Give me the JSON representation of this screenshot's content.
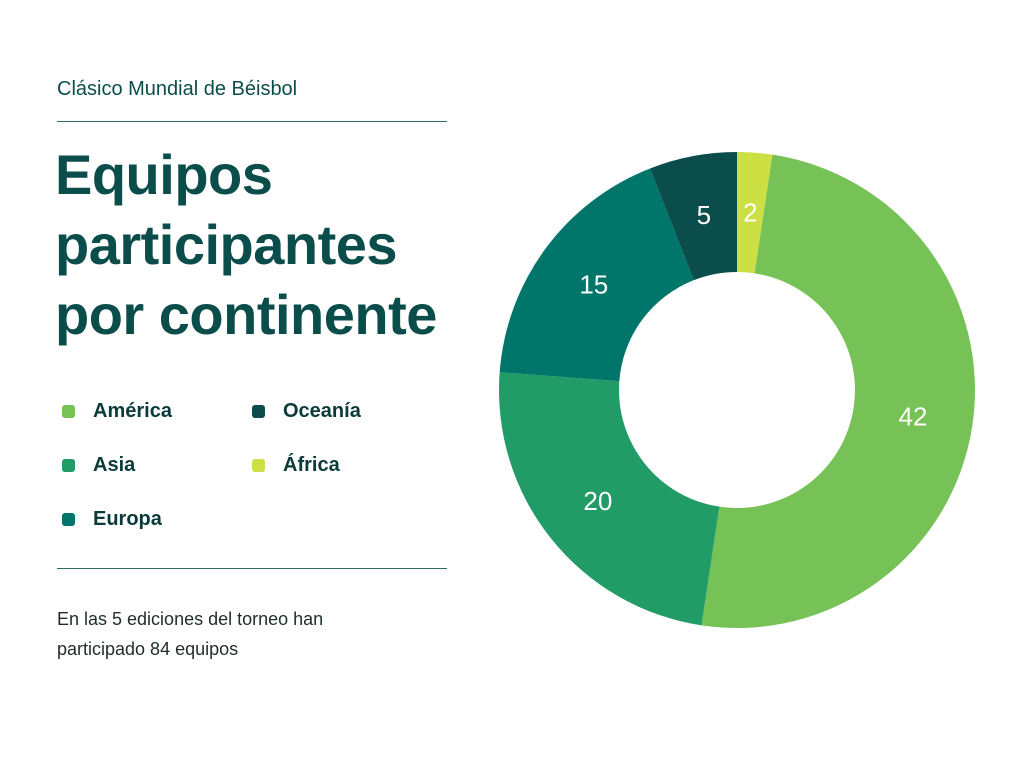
{
  "header": {
    "kicker": "Clásico Mundial de Béisbol"
  },
  "title": {
    "line1": "Equipos",
    "line2": "participantes",
    "line3": "por continente"
  },
  "caption": {
    "line1": "En las 5 ediciones del torneo han",
    "line2": "participado 84 equipos"
  },
  "legend": [
    {
      "label": "América",
      "color": "#77c257"
    },
    {
      "label": "Oceanía",
      "color": "#0a4d4a"
    },
    {
      "label": "Asia",
      "color": "#229c66"
    },
    {
      "label": "África",
      "color": "#cde043"
    },
    {
      "label": "Europa",
      "color": "#00756a"
    }
  ],
  "chart_data": {
    "type": "pie",
    "donut": true,
    "title": "Equipos participantes por continente",
    "slices": [
      {
        "label": "África",
        "value": 2,
        "color": "#cde043"
      },
      {
        "label": "América",
        "value": 42,
        "color": "#77c257"
      },
      {
        "label": "Asia",
        "value": 20,
        "color": "#229c66"
      },
      {
        "label": "Europa",
        "value": 15,
        "color": "#00756a"
      },
      {
        "label": "Oceanía",
        "value": 5,
        "color": "#0a4d4a"
      }
    ],
    "total": 84
  }
}
